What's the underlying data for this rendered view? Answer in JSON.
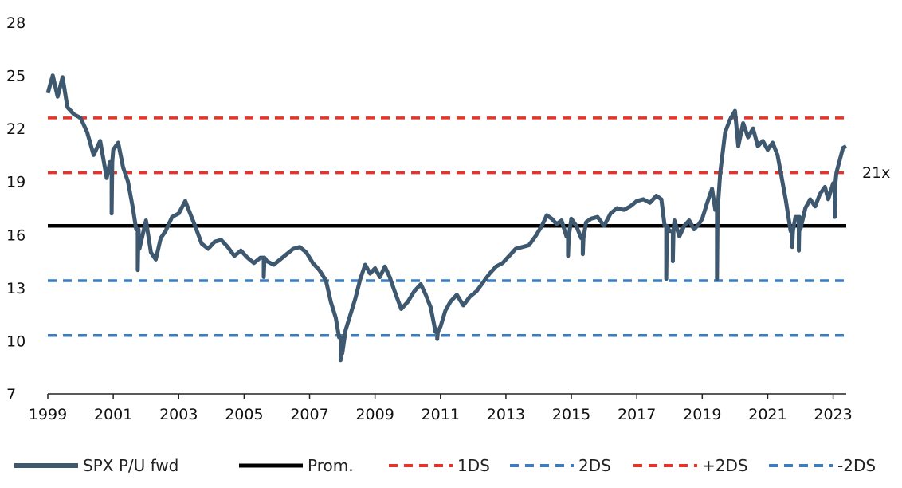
{
  "chart_data": {
    "type": "line",
    "title": "",
    "xlabel": "",
    "ylabel": "",
    "xlim": [
      1999,
      2023.4
    ],
    "ylim": [
      7,
      28
    ],
    "yticks": [
      7,
      10,
      13,
      16,
      19,
      22,
      25,
      28
    ],
    "xticks": [
      "1999",
      "2001",
      "2003",
      "2005",
      "2007",
      "2009",
      "2011",
      "2013",
      "2015",
      "2017",
      "2019",
      "2021",
      "2023"
    ],
    "annotation": "21x",
    "series": [
      {
        "name": "SPX P/U fwd",
        "color": "#3e5870",
        "style": "solid",
        "points": [
          [
            1999.0,
            24.0
          ],
          [
            1999.15,
            25.0
          ],
          [
            1999.3,
            23.8
          ],
          [
            1999.45,
            24.9
          ],
          [
            1999.6,
            23.2
          ],
          [
            1999.8,
            22.8
          ],
          [
            2000.0,
            22.6
          ],
          [
            2000.2,
            21.8
          ],
          [
            2000.4,
            20.5
          ],
          [
            2000.6,
            21.3
          ],
          [
            2000.8,
            19.2
          ],
          [
            2000.9,
            20.1
          ],
          [
            2001.0,
            20.8
          ],
          [
            2001.15,
            21.2
          ],
          [
            2001.3,
            19.8
          ],
          [
            2001.45,
            19.0
          ],
          [
            2001.6,
            17.5
          ],
          [
            2001.7,
            16.3
          ],
          [
            2001.8,
            15.2
          ],
          [
            2002.0,
            16.8
          ],
          [
            2002.15,
            15.0
          ],
          [
            2002.3,
            14.6
          ],
          [
            2002.45,
            15.8
          ],
          [
            2002.6,
            16.2
          ],
          [
            2002.8,
            17.0
          ],
          [
            2003.0,
            17.2
          ],
          [
            2003.2,
            17.9
          ],
          [
            2003.35,
            17.2
          ],
          [
            2003.5,
            16.5
          ],
          [
            2003.7,
            15.5
          ],
          [
            2003.9,
            15.2
          ],
          [
            2004.1,
            15.6
          ],
          [
            2004.3,
            15.7
          ],
          [
            2004.5,
            15.3
          ],
          [
            2004.7,
            14.8
          ],
          [
            2004.9,
            15.1
          ],
          [
            2005.1,
            14.7
          ],
          [
            2005.3,
            14.4
          ],
          [
            2005.5,
            14.7
          ],
          [
            2005.7,
            14.5
          ],
          [
            2005.9,
            14.3
          ],
          [
            2006.1,
            14.6
          ],
          [
            2006.3,
            14.9
          ],
          [
            2006.5,
            15.2
          ],
          [
            2006.7,
            15.3
          ],
          [
            2006.9,
            15.0
          ],
          [
            2007.1,
            14.4
          ],
          [
            2007.3,
            14.0
          ],
          [
            2007.5,
            13.4
          ],
          [
            2007.65,
            12.2
          ],
          [
            2007.8,
            11.3
          ],
          [
            2007.9,
            10.2
          ],
          [
            2008.0,
            9.3
          ],
          [
            2008.1,
            10.6
          ],
          [
            2008.25,
            11.5
          ],
          [
            2008.4,
            12.4
          ],
          [
            2008.55,
            13.5
          ],
          [
            2008.7,
            14.3
          ],
          [
            2008.85,
            13.8
          ],
          [
            2009.0,
            14.1
          ],
          [
            2009.15,
            13.6
          ],
          [
            2009.3,
            14.2
          ],
          [
            2009.45,
            13.6
          ],
          [
            2009.6,
            12.8
          ],
          [
            2009.8,
            11.8
          ],
          [
            2010.0,
            12.2
          ],
          [
            2010.2,
            12.8
          ],
          [
            2010.4,
            13.2
          ],
          [
            2010.55,
            12.6
          ],
          [
            2010.7,
            11.9
          ],
          [
            2010.85,
            10.5
          ],
          [
            2011.0,
            10.8
          ],
          [
            2011.15,
            11.7
          ],
          [
            2011.3,
            12.2
          ],
          [
            2011.5,
            12.6
          ],
          [
            2011.7,
            12.0
          ],
          [
            2011.9,
            12.5
          ],
          [
            2012.1,
            12.8
          ],
          [
            2012.3,
            13.3
          ],
          [
            2012.5,
            13.8
          ],
          [
            2012.7,
            14.2
          ],
          [
            2012.9,
            14.4
          ],
          [
            2013.1,
            14.8
          ],
          [
            2013.3,
            15.2
          ],
          [
            2013.5,
            15.3
          ],
          [
            2013.7,
            15.4
          ],
          [
            2013.9,
            15.9
          ],
          [
            2014.1,
            16.5
          ],
          [
            2014.25,
            17.1
          ],
          [
            2014.4,
            16.9
          ],
          [
            2014.55,
            16.6
          ],
          [
            2014.7,
            16.8
          ],
          [
            2014.85,
            15.9
          ],
          [
            2015.0,
            16.9
          ],
          [
            2015.15,
            16.5
          ],
          [
            2015.3,
            15.8
          ],
          [
            2015.45,
            16.7
          ],
          [
            2015.6,
            16.9
          ],
          [
            2015.8,
            17.0
          ],
          [
            2016.0,
            16.5
          ],
          [
            2016.2,
            17.2
          ],
          [
            2016.4,
            17.5
          ],
          [
            2016.6,
            17.4
          ],
          [
            2016.8,
            17.6
          ],
          [
            2017.0,
            17.9
          ],
          [
            2017.2,
            18.0
          ],
          [
            2017.4,
            17.8
          ],
          [
            2017.6,
            18.2
          ],
          [
            2017.75,
            18.0
          ],
          [
            2017.85,
            16.5
          ],
          [
            2018.0,
            16.2
          ],
          [
            2018.15,
            16.8
          ],
          [
            2018.3,
            15.9
          ],
          [
            2018.45,
            16.5
          ],
          [
            2018.6,
            16.8
          ],
          [
            2018.75,
            16.3
          ],
          [
            2018.9,
            16.6
          ],
          [
            2019.0,
            16.9
          ],
          [
            2019.15,
            17.8
          ],
          [
            2019.3,
            18.6
          ],
          [
            2019.4,
            17.4
          ],
          [
            2019.55,
            19.5
          ],
          [
            2019.7,
            21.8
          ],
          [
            2019.85,
            22.5
          ],
          [
            2020.0,
            23.0
          ],
          [
            2020.1,
            21.0
          ],
          [
            2020.25,
            22.3
          ],
          [
            2020.4,
            21.5
          ],
          [
            2020.55,
            22.0
          ],
          [
            2020.7,
            21.0
          ],
          [
            2020.85,
            21.3
          ],
          [
            2021.0,
            20.8
          ],
          [
            2021.15,
            21.2
          ],
          [
            2021.3,
            20.5
          ],
          [
            2021.45,
            19.0
          ],
          [
            2021.55,
            18.0
          ],
          [
            2021.7,
            16.2
          ],
          [
            2021.85,
            17.0
          ],
          [
            2022.0,
            16.3
          ],
          [
            2022.15,
            17.5
          ],
          [
            2022.3,
            18.0
          ],
          [
            2022.45,
            17.6
          ],
          [
            2022.6,
            18.3
          ],
          [
            2022.75,
            18.7
          ],
          [
            2022.85,
            18.0
          ],
          [
            2023.0,
            18.9
          ],
          [
            2023.1,
            19.5
          ],
          [
            2023.2,
            20.2
          ],
          [
            2023.3,
            20.9
          ],
          [
            2023.4,
            21.0
          ]
        ],
        "spikes": [
          [
            2000.95,
            17.2
          ],
          [
            2001.75,
            14.0
          ],
          [
            2005.6,
            13.6
          ],
          [
            2007.95,
            8.9
          ],
          [
            2010.9,
            10.1
          ],
          [
            2014.9,
            14.8
          ],
          [
            2015.35,
            14.9
          ],
          [
            2017.9,
            13.5
          ],
          [
            2018.1,
            14.5
          ],
          [
            2019.45,
            13.5
          ],
          [
            2021.75,
            15.3
          ],
          [
            2021.95,
            15.1
          ],
          [
            2023.05,
            17.0
          ]
        ]
      },
      {
        "name": "Prom.",
        "color": "#000000",
        "style": "solid",
        "value": 16.5
      },
      {
        "name": "1DS",
        "color": "#e8332a",
        "style": "dashed",
        "value": 19.5
      },
      {
        "name": "2DS",
        "color": "#3e7cc0",
        "style": "dashed",
        "value": 13.4
      },
      {
        "name": "+2DS",
        "color": "#e8332a",
        "style": "dashed",
        "value": 22.6
      },
      {
        "name": "-2DS",
        "color": "#3e7cc0",
        "style": "dashed",
        "value": 10.3
      }
    ]
  },
  "legend": {
    "items": [
      {
        "label": "SPX P/U fwd",
        "color": "#3e5870",
        "style": "solid",
        "weight": "6"
      },
      {
        "label": "Prom.",
        "color": "#000000",
        "style": "solid",
        "weight": "5"
      },
      {
        "label": "1DS",
        "color": "#e8332a",
        "style": "dashed",
        "weight": "4"
      },
      {
        "label": "2DS",
        "color": "#3e7cc0",
        "style": "dashed",
        "weight": "4"
      },
      {
        "label": "+2DS",
        "color": "#e8332a",
        "style": "dashed",
        "weight": "4"
      },
      {
        "label": "-2DS",
        "color": "#3e7cc0",
        "style": "dashed",
        "weight": "4"
      }
    ]
  }
}
